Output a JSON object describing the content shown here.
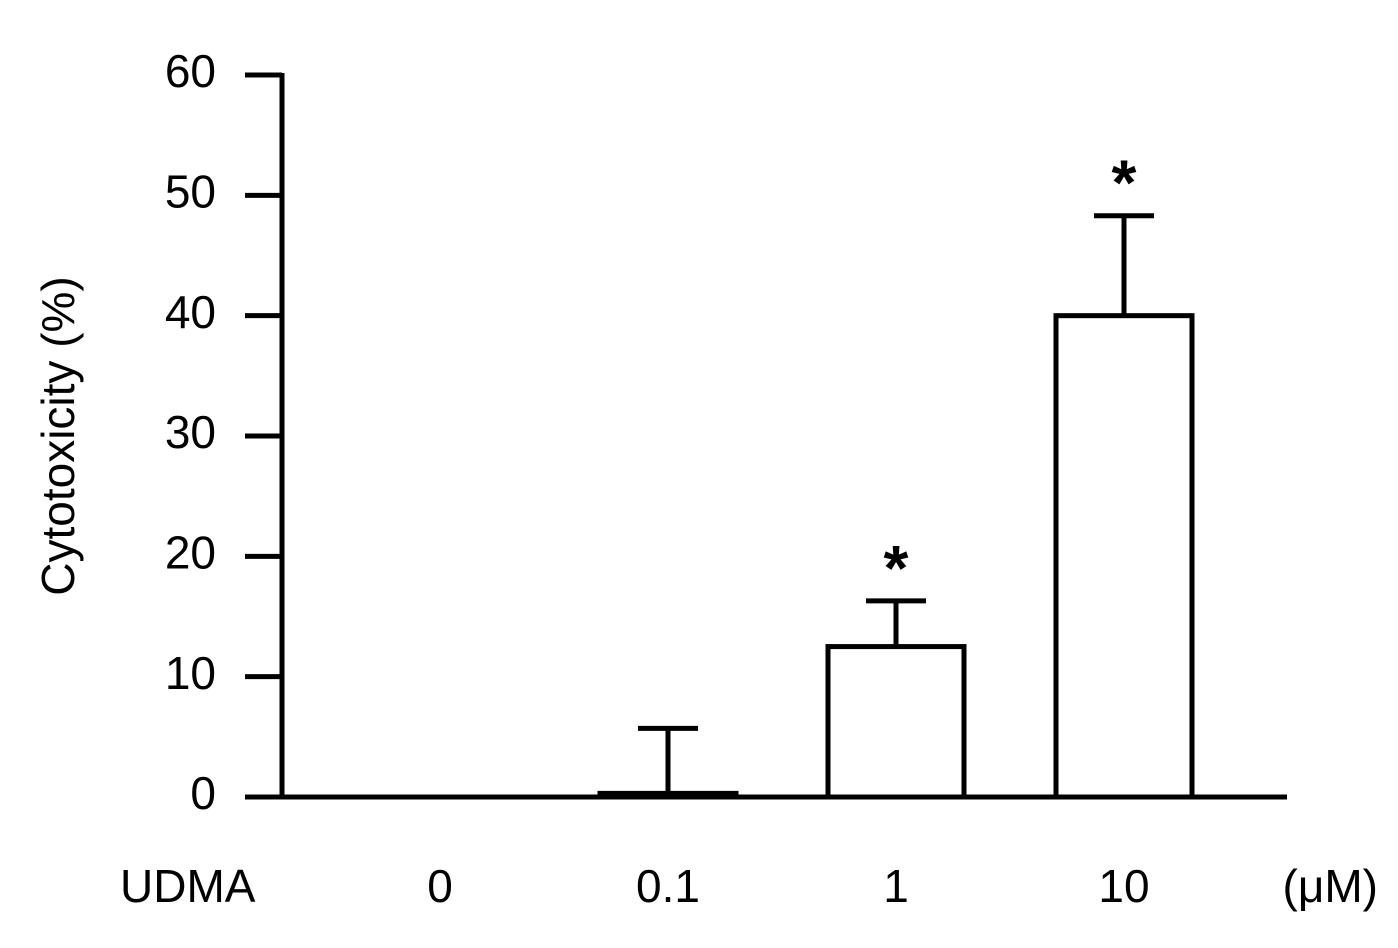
{
  "chart_data": {
    "type": "bar",
    "y_label": "Cytotoxicity (%)",
    "x_label": "UDMA",
    "x_unit": "(μM)",
    "categories": [
      "0",
      "0.1",
      "1",
      "10"
    ],
    "values": [
      0,
      0.3,
      12.5,
      40
    ],
    "errors": [
      0,
      5.4,
      3.8,
      8.3
    ],
    "significance": [
      null,
      null,
      "*",
      "*"
    ],
    "color": "#ffffff",
    "edge_color": "#000000",
    "ylim": [
      0,
      60
    ],
    "yticks": [
      0,
      10,
      20,
      30,
      40,
      50,
      60
    ],
    "grid": false
  }
}
